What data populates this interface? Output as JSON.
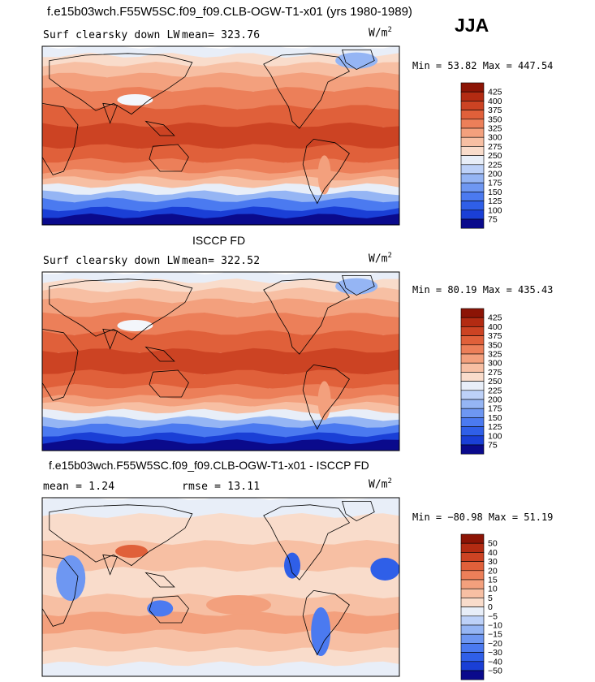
{
  "header": {
    "title": "f.e15b03wch.F55W5SC.f09_f09.CLB-OGW-T1-x01 (yrs 1980-1989)",
    "season": "JJA"
  },
  "units": {
    "base": "W/m",
    "exp": "2"
  },
  "colors": {
    "level_scale": [
      "#0a0a8c",
      "#1a3fd6",
      "#2f5fe8",
      "#4b7af0",
      "#6e97f2",
      "#95b5f4",
      "#bdd1f8",
      "#e8eef8",
      "#f9dccb",
      "#f7bfa3",
      "#f3a07d",
      "#ec7f59",
      "#e0603a",
      "#cc4323",
      "#b32b12",
      "#8c1405"
    ]
  },
  "chart_data": [
    {
      "type": "heatmap",
      "name": "model",
      "subtitle": "Surf clearsky down LW",
      "mean_label": "mean= 323.76",
      "min_label": "Min =  53.82 Max = 447.54",
      "min": 53.82,
      "max": 447.54,
      "mean": 323.76,
      "colorbar_ticks": [
        "425",
        "400",
        "375",
        "350",
        "325",
        "300",
        "275",
        "250",
        "225",
        "200",
        "175",
        "150",
        "125",
        "100",
        "75"
      ]
    },
    {
      "type": "heatmap",
      "name": "obs",
      "title": "ISCCP FD",
      "subtitle": "Surf clearsky down LW",
      "mean_label": "mean= 322.52",
      "min_label": "Min =  80.19 Max = 435.43",
      "min": 80.19,
      "max": 435.43,
      "mean": 322.52,
      "colorbar_ticks": [
        "425",
        "400",
        "375",
        "350",
        "325",
        "300",
        "275",
        "250",
        "225",
        "200",
        "175",
        "150",
        "125",
        "100",
        "75"
      ]
    },
    {
      "type": "heatmap",
      "name": "diff",
      "title": "f.e15b03wch.F55W5SC.f09_f09.CLB-OGW-T1-x01 - ISCCP FD",
      "mean_label": "mean =   1.24",
      "rmse_label": "rmse =  13.11",
      "min_label": "Min = −80.98 Max =  51.19",
      "min": -80.98,
      "max": 51.19,
      "mean": 1.24,
      "rmse": 13.11,
      "colorbar_ticks": [
        "50",
        "40",
        "30",
        "20",
        "15",
        "10",
        "5",
        "0",
        "−5",
        "−10",
        "−15",
        "−20",
        "−30",
        "−40",
        "−50"
      ]
    }
  ]
}
